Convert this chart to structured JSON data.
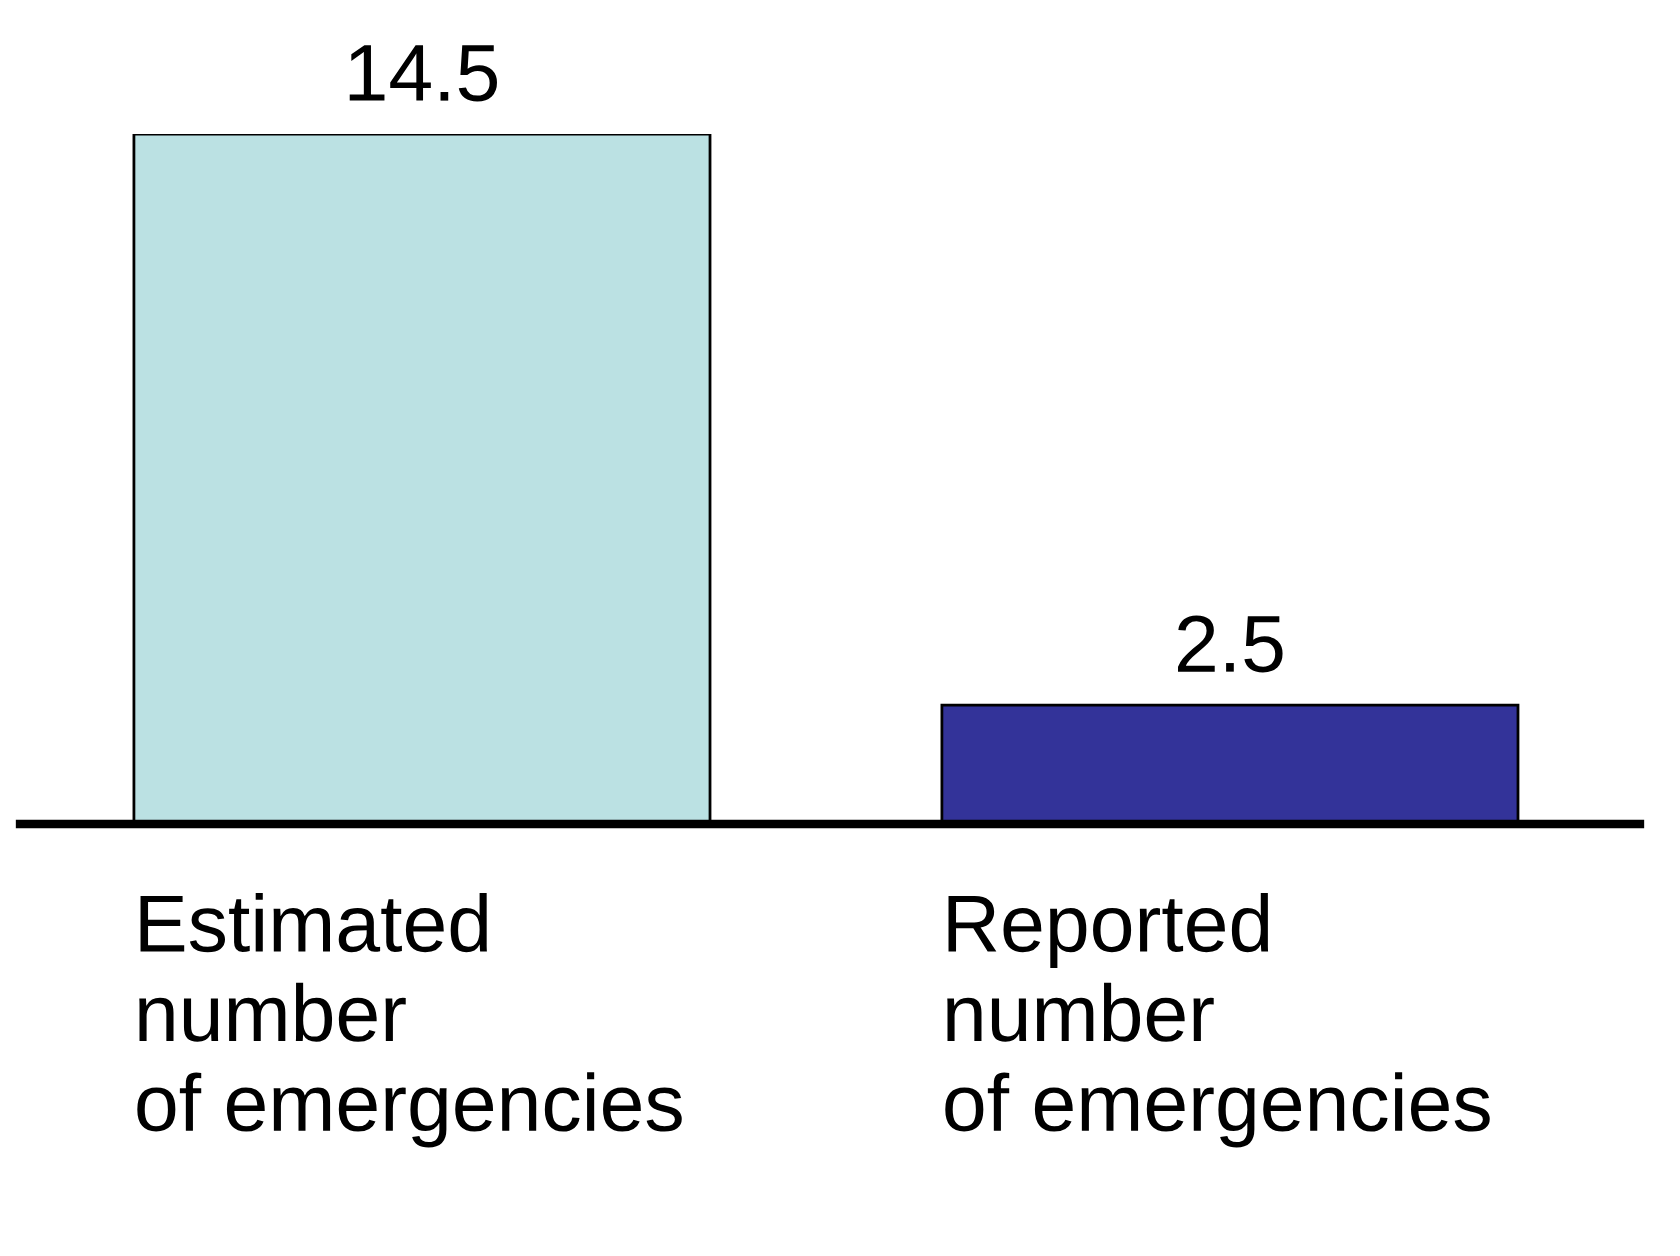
{
  "chart_data": {
    "type": "bar",
    "categories": [
      "Estimated\nnumber\nof emergencies",
      "Reported\nnumber\nof emergencies"
    ],
    "values": [
      14.5,
      2.5
    ],
    "colors": [
      "#bbe1e3",
      "#333399"
    ],
    "data_labels": true
  }
}
